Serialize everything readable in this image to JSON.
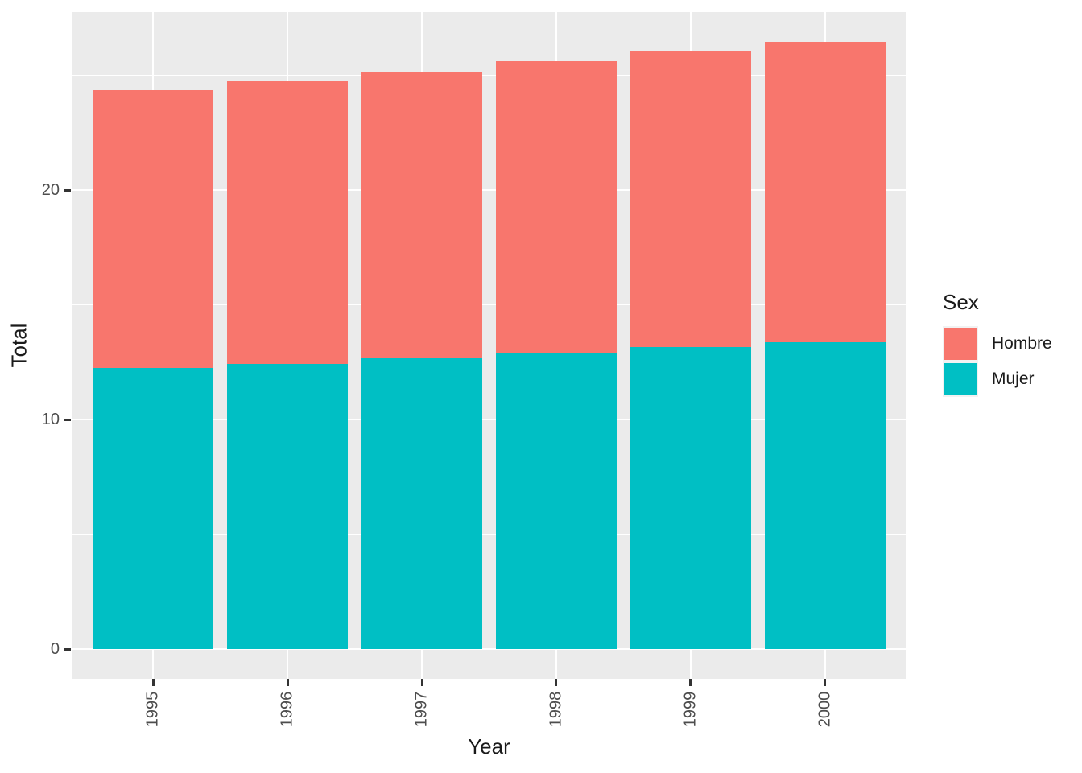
{
  "chart_data": {
    "type": "bar",
    "stacked": true,
    "orientation": "vertical",
    "title": "",
    "xlabel": "Year",
    "ylabel": "Total",
    "categories": [
      "1995",
      "1996",
      "1997",
      "1998",
      "1999",
      "2000"
    ],
    "series": [
      {
        "name": "Hombre",
        "color": "#F8766D",
        "values": [
          12.12,
          12.33,
          12.47,
          12.74,
          12.92,
          13.09
        ]
      },
      {
        "name": "Mujer",
        "color": "#00BFC4",
        "values": [
          12.24,
          12.41,
          12.67,
          12.88,
          13.16,
          13.37
        ]
      }
    ],
    "stack_order_bottom_to_top": [
      "Mujer",
      "Hombre"
    ],
    "totals": [
      24.36,
      24.74,
      25.14,
      25.62,
      26.08,
      26.46
    ],
    "yticks": [
      0,
      10,
      20
    ],
    "yminor": [
      5,
      15,
      25
    ],
    "ylim": [
      -1.3,
      27.78
    ],
    "grid": "white major+minor horizontal, white major vertical at each category",
    "legend_position": "right",
    "legend": {
      "title": "Sex",
      "entries": [
        {
          "label": "Hombre",
          "color": "#F8766D"
        },
        {
          "label": "Mujer",
          "color": "#00BFC4"
        }
      ]
    }
  },
  "colors": {
    "panel_background": "#EBEBEB",
    "gridline": "#FFFFFF",
    "tick_mark": "#333333",
    "tick_label": "#4D4D4D",
    "axis_title": "#1A1A1A",
    "hombre": "#F8766D",
    "mujer": "#00BFC4",
    "legend_key_background": "#F2F2F2",
    "page_background": "#FFFFFF"
  }
}
